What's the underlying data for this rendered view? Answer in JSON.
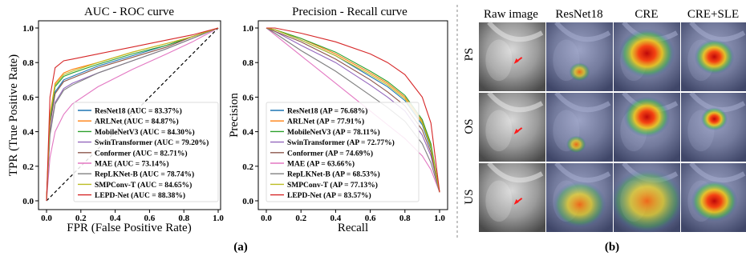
{
  "chart_data": [
    {
      "type": "line",
      "title": "AUC - ROC curve",
      "xlabel": "FPR (False Positive Rate)",
      "ylabel": "TPR (True Positive Rate)",
      "xlim": [
        0,
        1
      ],
      "ylim": [
        0,
        1
      ],
      "ticks": [
        "0.0",
        "0.2",
        "0.4",
        "0.6",
        "0.8",
        "1.0"
      ],
      "tick_values": [
        0,
        0.2,
        0.4,
        0.6,
        0.8,
        1.0
      ],
      "grid": false,
      "legend_position": "bottom-right",
      "reference_line": {
        "x": [
          0,
          1
        ],
        "y": [
          0,
          1
        ],
        "style": "dashed"
      },
      "series": [
        {
          "name": "ResNet18 (AUC = 83.37%)",
          "color": "#1f77b4",
          "x": [
            0,
            0.02,
            0.05,
            0.1,
            0.15,
            0.3,
            0.5,
            0.7,
            0.85,
            1.0
          ],
          "y": [
            0,
            0.46,
            0.63,
            0.7,
            0.72,
            0.78,
            0.84,
            0.9,
            0.95,
            1.0
          ]
        },
        {
          "name": "ARLNet (AUC = 84.87%)",
          "color": "#ff7f0e",
          "x": [
            0,
            0.02,
            0.05,
            0.1,
            0.15,
            0.3,
            0.5,
            0.7,
            0.85,
            1.0
          ],
          "y": [
            0,
            0.5,
            0.68,
            0.74,
            0.76,
            0.8,
            0.86,
            0.91,
            0.95,
            1.0
          ]
        },
        {
          "name": "MobileNetV3 (AUC = 84.30%)",
          "color": "#2ca02c",
          "x": [
            0,
            0.02,
            0.05,
            0.1,
            0.15,
            0.3,
            0.5,
            0.7,
            0.85,
            1.0
          ],
          "y": [
            0,
            0.48,
            0.66,
            0.72,
            0.74,
            0.79,
            0.85,
            0.9,
            0.95,
            1.0
          ]
        },
        {
          "name": "SwinTransformer (AUC = 79.20%)",
          "color": "#9467bd",
          "x": [
            0,
            0.02,
            0.05,
            0.1,
            0.15,
            0.3,
            0.5,
            0.7,
            0.85,
            1.0
          ],
          "y": [
            0,
            0.4,
            0.57,
            0.65,
            0.68,
            0.74,
            0.81,
            0.88,
            0.94,
            1.0
          ]
        },
        {
          "name": "Conformer (AUC = 82.71%)",
          "color": "#8c564b",
          "x": [
            0,
            0.02,
            0.05,
            0.1,
            0.15,
            0.3,
            0.5,
            0.7,
            0.85,
            1.0
          ],
          "y": [
            0,
            0.44,
            0.62,
            0.69,
            0.71,
            0.77,
            0.83,
            0.89,
            0.95,
            1.0
          ]
        },
        {
          "name": "MAE (AUC = 73.14%)",
          "color": "#e377c2",
          "x": [
            0,
            0.02,
            0.05,
            0.1,
            0.15,
            0.3,
            0.5,
            0.7,
            0.85,
            1.0
          ],
          "y": [
            0,
            0.25,
            0.4,
            0.5,
            0.56,
            0.66,
            0.76,
            0.85,
            0.92,
            1.0
          ]
        },
        {
          "name": "RepLKNet-B (AUC = 78.74%)",
          "color": "#7f7f7f",
          "x": [
            0,
            0.02,
            0.05,
            0.1,
            0.15,
            0.3,
            0.5,
            0.7,
            0.85,
            1.0
          ],
          "y": [
            0,
            0.38,
            0.56,
            0.64,
            0.67,
            0.74,
            0.81,
            0.88,
            0.94,
            1.0
          ]
        },
        {
          "name": "SMPConv-T (AUC = 84.65%)",
          "color": "#bcbd22",
          "x": [
            0,
            0.02,
            0.05,
            0.1,
            0.15,
            0.3,
            0.5,
            0.7,
            0.85,
            1.0
          ],
          "y": [
            0,
            0.49,
            0.67,
            0.73,
            0.75,
            0.8,
            0.86,
            0.91,
            0.95,
            1.0
          ]
        },
        {
          "name": "LEPD-Net (AUC = 88.38%)",
          "color": "#d62728",
          "x": [
            0,
            0.02,
            0.05,
            0.1,
            0.15,
            0.3,
            0.5,
            0.7,
            0.85,
            1.0
          ],
          "y": [
            0,
            0.6,
            0.77,
            0.81,
            0.82,
            0.85,
            0.89,
            0.93,
            0.96,
            1.0
          ]
        }
      ]
    },
    {
      "type": "line",
      "title": "Precision - Recall curve",
      "xlabel": "Recall",
      "ylabel": "Precision",
      "xlim": [
        0,
        1
      ],
      "ylim": [
        0,
        1
      ],
      "ticks": [
        "0.0",
        "0.2",
        "0.4",
        "0.6",
        "0.8",
        "1.0"
      ],
      "tick_values": [
        0,
        0.2,
        0.4,
        0.6,
        0.8,
        1.0
      ],
      "grid": false,
      "legend_position": "bottom-left",
      "series": [
        {
          "name": "ResNet18 (AP = 76.68%)",
          "color": "#1f77b4",
          "x": [
            0,
            0.05,
            0.2,
            0.4,
            0.6,
            0.7,
            0.8,
            0.9,
            0.95,
            1.0
          ],
          "y": [
            1.0,
            0.99,
            0.93,
            0.84,
            0.72,
            0.66,
            0.58,
            0.44,
            0.3,
            0.05
          ]
        },
        {
          "name": "ARLNet (AP = 77.91%)",
          "color": "#ff7f0e",
          "x": [
            0,
            0.05,
            0.2,
            0.4,
            0.6,
            0.7,
            0.8,
            0.9,
            0.95,
            1.0
          ],
          "y": [
            1.0,
            0.99,
            0.94,
            0.85,
            0.74,
            0.68,
            0.6,
            0.46,
            0.32,
            0.05
          ]
        },
        {
          "name": "MobileNetV3 (AP = 78.11%)",
          "color": "#2ca02c",
          "x": [
            0,
            0.05,
            0.2,
            0.4,
            0.6,
            0.7,
            0.8,
            0.9,
            0.95,
            1.0
          ],
          "y": [
            1.0,
            0.99,
            0.94,
            0.86,
            0.75,
            0.69,
            0.61,
            0.47,
            0.33,
            0.05
          ]
        },
        {
          "name": "SwinTransformer (AP = 72.77%)",
          "color": "#9467bd",
          "x": [
            0,
            0.05,
            0.2,
            0.4,
            0.6,
            0.7,
            0.8,
            0.9,
            0.95,
            1.0
          ],
          "y": [
            1.0,
            0.98,
            0.9,
            0.8,
            0.67,
            0.6,
            0.52,
            0.38,
            0.26,
            0.05
          ]
        },
        {
          "name": "Conformer (AP = 74.69%)",
          "color": "#8c564b",
          "x": [
            0,
            0.05,
            0.2,
            0.4,
            0.6,
            0.7,
            0.8,
            0.9,
            0.95,
            1.0
          ],
          "y": [
            1.0,
            0.98,
            0.92,
            0.82,
            0.7,
            0.63,
            0.55,
            0.41,
            0.28,
            0.05
          ]
        },
        {
          "name": "MAE (AP = 63.66%)",
          "color": "#e377c2",
          "x": [
            0,
            0.05,
            0.2,
            0.4,
            0.6,
            0.7,
            0.8,
            0.9,
            0.95,
            1.0
          ],
          "y": [
            1.0,
            0.96,
            0.84,
            0.68,
            0.52,
            0.44,
            0.36,
            0.26,
            0.18,
            0.05
          ]
        },
        {
          "name": "RepLKNet-B (AP = 68.53%)",
          "color": "#7f7f7f",
          "x": [
            0,
            0.05,
            0.2,
            0.4,
            0.6,
            0.7,
            0.8,
            0.9,
            0.95,
            1.0
          ],
          "y": [
            1.0,
            0.97,
            0.87,
            0.75,
            0.61,
            0.54,
            0.46,
            0.33,
            0.22,
            0.05
          ]
        },
        {
          "name": "SMPConv-T (AP = 77.13%)",
          "color": "#bcbd22",
          "x": [
            0,
            0.05,
            0.2,
            0.4,
            0.6,
            0.7,
            0.8,
            0.9,
            0.95,
            1.0
          ],
          "y": [
            1.0,
            0.99,
            0.93,
            0.84,
            0.73,
            0.67,
            0.59,
            0.45,
            0.31,
            0.05
          ]
        },
        {
          "name": "LEPD-Net (AP = 83.57%)",
          "color": "#d62728",
          "x": [
            0,
            0.05,
            0.2,
            0.4,
            0.6,
            0.7,
            0.8,
            0.9,
            0.95,
            1.0
          ],
          "y": [
            1.0,
            1.0,
            0.97,
            0.92,
            0.85,
            0.8,
            0.73,
            0.6,
            0.45,
            0.05
          ]
        }
      ]
    }
  ],
  "panel_a_label": "(a)",
  "panel_b": {
    "label": "(b)",
    "columns": [
      "Raw image",
      "ResNet18",
      "CRE",
      "CRE+SLE"
    ],
    "rows": [
      "PS",
      "OS",
      "US"
    ]
  }
}
